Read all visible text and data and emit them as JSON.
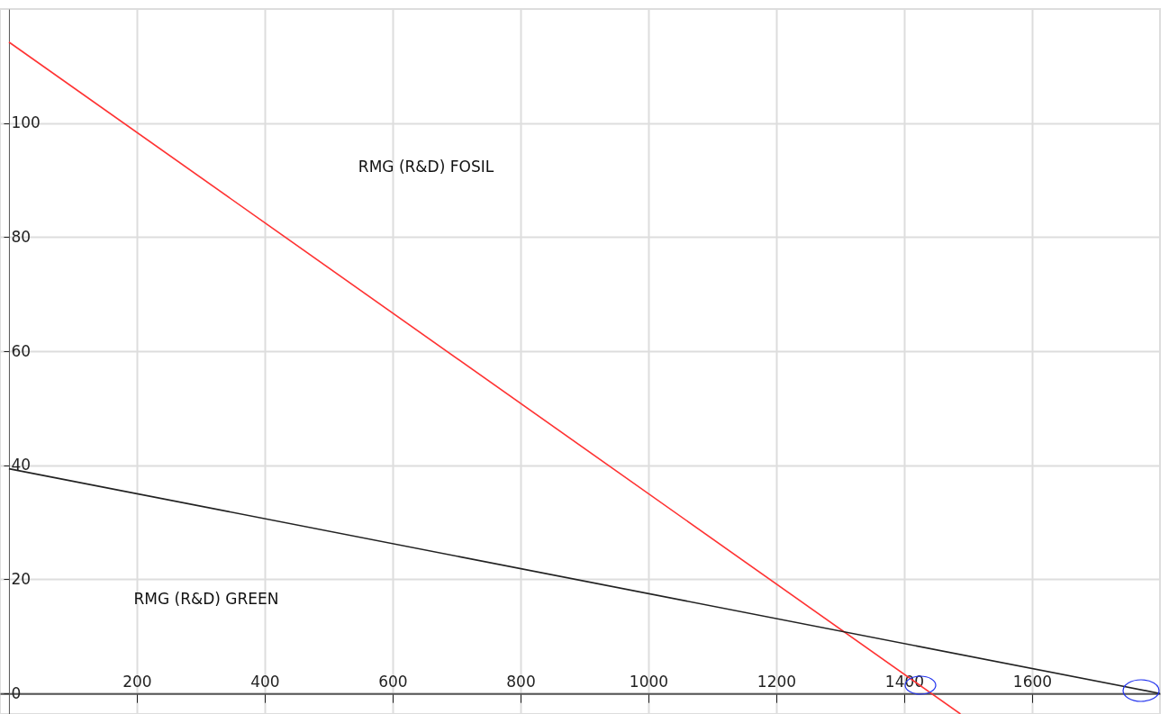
{
  "chart_data": {
    "type": "line",
    "series": [
      {
        "color": "#ff3333",
        "x": [
          0,
          1488
        ],
        "values": [
          114.2,
          -3.6
        ]
      },
      {
        "color": "#222222",
        "x": [
          0,
          1800
        ],
        "values": [
          39.4,
          0
        ]
      }
    ],
    "xlim": [
      -14,
      1800
    ],
    "ylim": [
      -3.6,
      120
    ],
    "xticks": [
      200,
      400,
      600,
      800,
      1000,
      1200,
      1400,
      1600
    ],
    "yticks": [
      0,
      20,
      40,
      60,
      80,
      100
    ],
    "grid": true,
    "marker": "none",
    "line_style": "solid",
    "annotations": [
      "RMG (R&D) FOSIL",
      "RMG (R&D) GREEN"
    ]
  }
}
